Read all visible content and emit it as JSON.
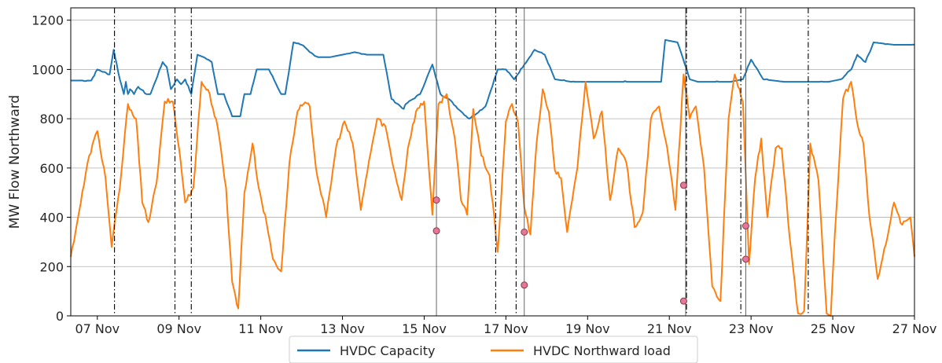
{
  "colors": {
    "capacity": "#1f77b4",
    "load": "#ff7f0e",
    "grid": "#b0b0b0",
    "marker_fill": "#e377a0",
    "marker_edge": "#8b3a3a",
    "event_line": "#000000"
  },
  "chart_data": {
    "type": "line",
    "title": "",
    "xlabel": "",
    "ylabel": "MW Flow Northward",
    "x_unit": "days",
    "xlim": [
      6.35,
      27.0
    ],
    "ylim": [
      0,
      1250
    ],
    "grid": "horizontal",
    "legend": {
      "placement": "bottom-center",
      "entries": [
        "HVDC Capacity",
        "HVDC Northward load"
      ]
    },
    "y_ticks": [
      0,
      200,
      400,
      600,
      800,
      1000,
      1200
    ],
    "x_ticks": [
      {
        "day": 7,
        "label": "07 Nov"
      },
      {
        "day": 9,
        "label": "09 Nov"
      },
      {
        "day": 11,
        "label": "11 Nov"
      },
      {
        "day": 13,
        "label": "13 Nov"
      },
      {
        "day": 15,
        "label": "15 Nov"
      },
      {
        "day": 17,
        "label": "17 Nov"
      },
      {
        "day": 19,
        "label": "19 Nov"
      },
      {
        "day": 21,
        "label": "21 Nov"
      },
      {
        "day": 23,
        "label": "23 Nov"
      },
      {
        "day": 25,
        "label": "25 Nov"
      },
      {
        "day": 27,
        "label": "27 Nov"
      }
    ],
    "series": [
      {
        "name": "HVDC Capacity",
        "x": [
          6.35,
          6.85,
          7.0,
          7.3,
          7.4,
          7.55,
          7.65,
          7.7,
          7.75,
          7.8,
          7.9,
          8.0,
          8.2,
          8.3,
          8.6,
          8.7,
          8.8,
          8.95,
          9.05,
          9.15,
          9.3,
          9.45,
          9.6,
          9.8,
          9.95,
          10.1,
          10.3,
          10.5,
          10.6,
          10.75,
          10.9,
          11.2,
          11.5,
          11.6,
          11.8,
          12.0,
          12.2,
          12.4,
          12.7,
          13.0,
          13.3,
          13.6,
          14.0,
          14.2,
          14.5,
          14.55,
          14.9,
          15.2,
          15.4,
          15.6,
          15.9,
          16.1,
          16.5,
          16.8,
          17.0,
          17.2,
          17.45,
          17.7,
          17.95,
          18.2,
          18.6,
          18.9,
          19.3,
          19.7,
          20.0,
          20.5,
          20.8,
          20.9,
          21.2,
          21.5,
          21.7,
          22.0,
          22.5,
          22.8,
          23.0,
          23.3,
          23.8,
          24.1,
          24.5,
          24.9,
          25.2,
          25.45,
          25.6,
          25.8,
          26.0,
          26.5,
          27.0
        ],
        "y": [
          955,
          955,
          1000,
          980,
          1080,
          960,
          900,
          950,
          900,
          920,
          900,
          930,
          900,
          900,
          1030,
          1010,
          920,
          960,
          940,
          960,
          900,
          1060,
          1050,
          1030,
          900,
          900,
          810,
          810,
          900,
          900,
          1000,
          1000,
          900,
          900,
          1110,
          1100,
          1070,
          1050,
          1050,
          1060,
          1070,
          1060,
          1060,
          880,
          840,
          860,
          900,
          1020,
          900,
          880,
          830,
          800,
          850,
          1000,
          1000,
          960,
          1020,
          1080,
          1060,
          960,
          950,
          950,
          950,
          950,
          950,
          950,
          950,
          1120,
          1110,
          960,
          950,
          950,
          950,
          960,
          1040,
          960,
          950,
          950,
          950,
          950,
          960,
          1000,
          1060,
          1030,
          1110,
          1100,
          1100
        ]
      },
      {
        "name": "HVDC Northward load",
        "x": [
          6.35,
          6.55,
          6.8,
          7.0,
          7.2,
          7.35,
          7.55,
          7.75,
          7.95,
          8.1,
          8.25,
          8.45,
          8.65,
          8.85,
          9.0,
          9.15,
          9.35,
          9.55,
          9.75,
          9.95,
          10.15,
          10.3,
          10.45,
          10.6,
          10.8,
          10.95,
          11.15,
          11.3,
          11.5,
          11.7,
          11.9,
          12.05,
          12.2,
          12.35,
          12.6,
          12.85,
          13.05,
          13.25,
          13.45,
          13.65,
          13.85,
          14.05,
          14.25,
          14.45,
          14.6,
          14.8,
          15.0,
          15.2,
          15.35,
          15.55,
          15.75,
          15.9,
          16.05,
          16.2,
          16.4,
          16.6,
          16.8,
          17.0,
          17.15,
          17.3,
          17.45,
          17.6,
          17.75,
          17.9,
          18.05,
          18.2,
          18.35,
          18.5,
          18.75,
          18.95,
          19.15,
          19.35,
          19.55,
          19.75,
          19.95,
          20.15,
          20.35,
          20.55,
          20.75,
          20.95,
          21.15,
          21.35,
          21.5,
          21.65,
          21.85,
          22.05,
          22.25,
          22.45,
          22.6,
          22.8,
          22.95,
          23.1,
          23.25,
          23.4,
          23.6,
          23.75,
          23.95,
          24.15,
          24.3,
          24.45,
          24.65,
          24.85,
          24.95,
          25.05,
          25.25,
          25.45,
          25.6,
          25.75,
          25.9,
          26.1,
          26.3,
          26.5,
          26.7,
          26.9,
          27.0
        ],
        "y": [
          240,
          420,
          650,
          750,
          560,
          280,
          520,
          860,
          800,
          460,
          380,
          540,
          870,
          870,
          680,
          460,
          520,
          950,
          900,
          760,
          520,
          140,
          30,
          500,
          700,
          520,
          370,
          230,
          180,
          620,
          830,
          860,
          850,
          600,
          400,
          690,
          790,
          700,
          430,
          630,
          800,
          770,
          600,
          470,
          680,
          830,
          870,
          410,
          860,
          900,
          720,
          470,
          410,
          840,
          650,
          570,
          260,
          790,
          860,
          780,
          440,
          330,
          700,
          920,
          830,
          590,
          560,
          340,
          600,
          950,
          720,
          830,
          470,
          680,
          620,
          360,
          420,
          800,
          850,
          680,
          430,
          980,
          800,
          850,
          600,
          120,
          60,
          800,
          980,
          870,
          210,
          560,
          720,
          400,
          680,
          680,
          310,
          10,
          20,
          700,
          550,
          10,
          0,
          330,
          880,
          950,
          780,
          700,
          400,
          150,
          290,
          460,
          370,
          400,
          240
        ]
      }
    ],
    "event_lines_dashdot": [
      7.42,
      8.9,
      9.3,
      16.75,
      17.25,
      21.42,
      22.75,
      24.4
    ],
    "event_lines_solid": [
      15.3,
      17.45,
      21.4,
      22.87
    ],
    "markers": [
      {
        "x": 15.3,
        "y": 470
      },
      {
        "x": 15.3,
        "y": 345
      },
      {
        "x": 17.45,
        "y": 340
      },
      {
        "x": 17.45,
        "y": 125
      },
      {
        "x": 21.35,
        "y": 530
      },
      {
        "x": 21.35,
        "y": 60
      },
      {
        "x": 22.87,
        "y": 365
      },
      {
        "x": 22.87,
        "y": 230
      }
    ]
  }
}
